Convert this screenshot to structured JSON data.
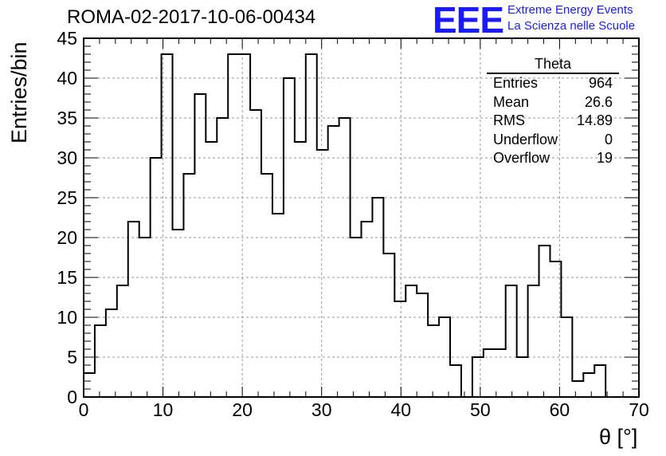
{
  "header": {
    "title": "ROMA-02-2017-10-06-00434",
    "logo_mark": "EEE",
    "logo_line1": "Extreme Energy Events",
    "logo_line2": "La Scienza nelle Scuole"
  },
  "stats_box": {
    "title": "Theta",
    "rows": [
      {
        "label": "Entries",
        "value": "964"
      },
      {
        "label": "Mean",
        "value": "26.6"
      },
      {
        "label": "RMS",
        "value": "14.89"
      },
      {
        "label": "Underflow",
        "value": "0"
      },
      {
        "label": "Overflow",
        "value": "19"
      }
    ]
  },
  "chart_data": {
    "type": "bar",
    "style": "step-histogram",
    "title": "ROMA-02-2017-10-06-00434",
    "xlabel": "θ [°]",
    "ylabel": "Entries/bin",
    "xlim": [
      0,
      70
    ],
    "ylim": [
      0,
      45
    ],
    "xticks": [
      0,
      10,
      20,
      30,
      40,
      50,
      60,
      70
    ],
    "yticks": [
      0,
      5,
      10,
      15,
      20,
      25,
      30,
      35,
      40,
      45
    ],
    "grid": true,
    "bin_width": 1.4,
    "bin_start": 0,
    "values": [
      3,
      9,
      11,
      14,
      22,
      20,
      30,
      43,
      21,
      28,
      38,
      32,
      35,
      43,
      43,
      36,
      28,
      23,
      40,
      32,
      43,
      31,
      34,
      35,
      20,
      22,
      25,
      18,
      12,
      14,
      13,
      9,
      10,
      4,
      0,
      5,
      6,
      6,
      14,
      5,
      14,
      19,
      17,
      10,
      2,
      3,
      4,
      0,
      0,
      0
    ],
    "line_color": "#000000"
  }
}
